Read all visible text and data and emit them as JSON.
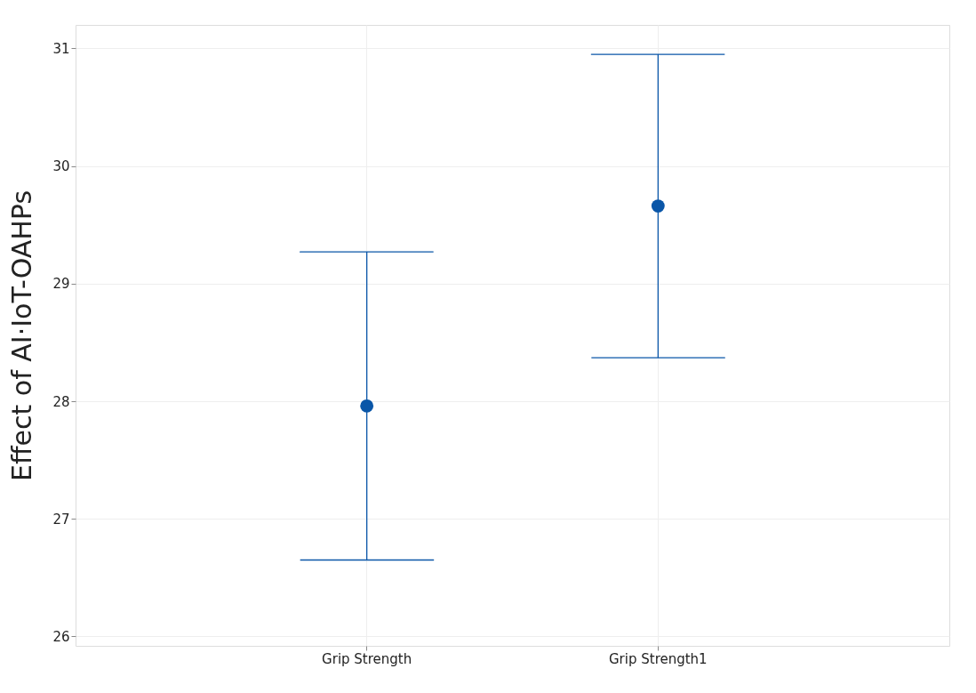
{
  "chart_data": {
    "type": "scatter",
    "ylabel": "Effect of AI·IoT-OAHPs",
    "categories": [
      "Grip Strength",
      "Grip Strength1"
    ],
    "values": [
      27.96,
      29.66
    ],
    "errors": [
      [
        26.65,
        29.27
      ],
      [
        28.37,
        30.95
      ]
    ],
    "color": "#0a56a8",
    "marker": "circle",
    "grid": true,
    "ylim": [
      25.92,
      31.2
    ],
    "yticks": [
      26,
      27,
      28,
      29,
      30,
      31
    ]
  }
}
